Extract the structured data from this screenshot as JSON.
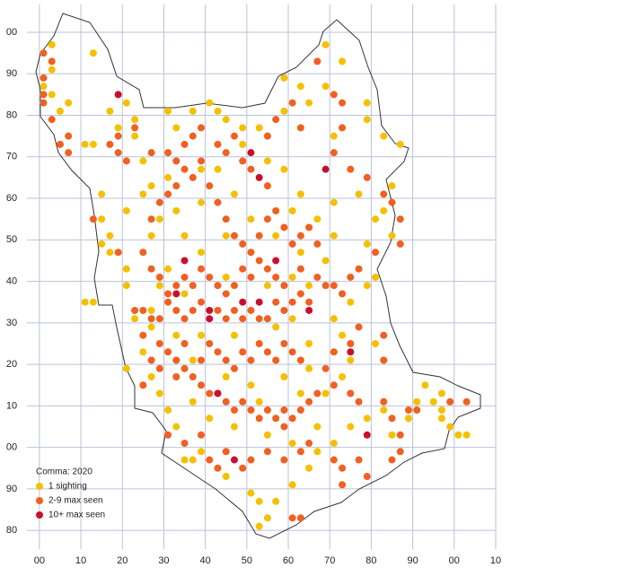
{
  "chart_data": {
    "type": "scatter",
    "title": "Comma:  2020",
    "xlim": [
      -3,
      110
    ],
    "ylim": [
      75.5,
      206.7
    ],
    "xticks": [
      {
        "value": 0,
        "label": "00"
      },
      10,
      20,
      30,
      40,
      50,
      60,
      70,
      80,
      90,
      {
        "value": 100,
        "label": "00"
      },
      {
        "value": 110,
        "label": "10"
      }
    ],
    "yticks": [
      80,
      90,
      {
        "value": 100,
        "label": "00"
      },
      {
        "value": 110,
        "label": "10"
      },
      {
        "value": 120,
        "label": "20"
      },
      {
        "value": 130,
        "label": "30"
      },
      {
        "value": 140,
        "label": "40"
      },
      {
        "value": 150,
        "label": "50"
      },
      {
        "value": 160,
        "label": "60"
      },
      {
        "value": 170,
        "label": "70"
      },
      {
        "value": 180,
        "label": "80"
      },
      {
        "value": 190,
        "label": "90"
      },
      {
        "value": 200,
        "label": "00"
      }
    ],
    "grid": true,
    "series": [
      {
        "name": "1 sighting",
        "color": "#f5c000",
        "x": [
          1,
          3,
          3,
          3,
          5,
          7,
          13,
          21,
          17,
          13,
          11,
          19,
          23,
          23,
          25,
          31,
          33,
          37,
          41,
          43,
          45,
          49,
          53,
          59,
          59,
          63,
          65,
          73,
          69,
          69,
          71,
          79,
          79,
          83,
          87,
          85,
          83,
          81,
          85,
          77,
          71,
          63,
          59,
          55,
          49,
          43,
          39,
          31,
          27,
          25,
          29,
          21,
          15,
          15,
          17,
          15,
          17,
          11,
          13,
          21,
          21,
          23,
          27,
          25,
          21,
          27,
          29,
          31,
          33,
          35,
          37,
          39,
          45,
          51,
          53,
          57,
          55,
          53,
          61,
          65,
          67,
          71,
          75,
          79,
          83,
          85,
          89,
          91,
          95,
          97,
          99,
          101,
          103,
          97,
          93,
          97,
          73,
          75,
          81,
          73,
          71,
          75,
          79,
          81,
          79,
          71,
          69,
          63,
          61,
          55,
          45,
          39,
          35,
          31,
          29,
          27,
          33,
          37,
          39,
          45,
          51,
          53,
          59,
          63,
          65,
          69,
          67,
          61,
          55,
          47,
          41,
          37,
          47,
          57,
          61,
          65,
          45,
          51,
          57,
          61,
          67,
          65,
          47,
          39,
          33,
          27,
          35
        ],
        "y": [
          187,
          191,
          197,
          185,
          181,
          183,
          195,
          183,
          181,
          173,
          173,
          177,
          179,
          175,
          169,
          181,
          177,
          181,
          183,
          181,
          179,
          177,
          177,
          181,
          189,
          187,
          183,
          193,
          197,
          187,
          175,
          183,
          179,
          175,
          173,
          163,
          157,
          155,
          151,
          161,
          159,
          161,
          167,
          169,
          173,
          167,
          167,
          165,
          163,
          161,
          155,
          157,
          161,
          155,
          151,
          149,
          147,
          135,
          135,
          143,
          139,
          131,
          129,
          123,
          119,
          117,
          113,
          109,
          105,
          97,
          97,
          99,
          93,
          89,
          87,
          87,
          83,
          81,
          91,
          95,
          99,
          101,
          105,
          107,
          109,
          103,
          107,
          111,
          111,
          109,
          105,
          103,
          103,
          113,
          115,
          107,
          117,
          121,
          125,
          127,
          131,
          135,
          139,
          141,
          149,
          151,
          145,
          147,
          141,
          139,
          141,
          147,
          151,
          143,
          139,
          133,
          127,
          121,
          127,
          117,
          115,
          111,
          117,
          113,
          119,
          113,
          105,
          101,
          103,
          105,
          107,
          111,
          127,
          129,
          131,
          125,
          151,
          155,
          151,
          157,
          155,
          139,
          161,
          159,
          157,
          151,
          137
        ]
      },
      {
        "name": "2-9 max seen",
        "color": "#f06020",
        "x": [
          1,
          1,
          1,
          1,
          3,
          3,
          5,
          7,
          7,
          17,
          19,
          21,
          23,
          19,
          13,
          19,
          27,
          31,
          33,
          35,
          37,
          39,
          43,
          45,
          47,
          49,
          51,
          55,
          55,
          57,
          61,
          63,
          67,
          71,
          73,
          73,
          71,
          75,
          79,
          83,
          85,
          87,
          87,
          81,
          77,
          75,
          73,
          71,
          67,
          63,
          59,
          57,
          55,
          53,
          51,
          49,
          47,
          45,
          43,
          41,
          39,
          37,
          35,
          33,
          31,
          29,
          27,
          25,
          27,
          29,
          31,
          33,
          35,
          37,
          39,
          41,
          43,
          45,
          47,
          49,
          51,
          53,
          55,
          57,
          59,
          61,
          63,
          65,
          67,
          69,
          65,
          63,
          61,
          59,
          57,
          55,
          53,
          51,
          49,
          47,
          45,
          43,
          39,
          37,
          35,
          33,
          31,
          29,
          27,
          25,
          23,
          25,
          29,
          31,
          33,
          35,
          37,
          39,
          41,
          45,
          47,
          49,
          51,
          53,
          55,
          57,
          59,
          61,
          63,
          65,
          67,
          63,
          61,
          59,
          57,
          55,
          53,
          51,
          49,
          47,
          45,
          43,
          41,
          39,
          35,
          33,
          29,
          27,
          25,
          31,
          35,
          39,
          41,
          43,
          45,
          49,
          51,
          55,
          59,
          63,
          65,
          71,
          73,
          73,
          77,
          79,
          85,
          87,
          87,
          85,
          89,
          91,
          99,
          103,
          83,
          77,
          75,
          71,
          69,
          71,
          75,
          77,
          83,
          83,
          61,
          63,
          59
        ],
        "y": [
          185,
          183,
          189,
          195,
          193,
          179,
          173,
          171,
          175,
          173,
          175,
          169,
          177,
          171,
          155,
          147,
          171,
          171,
          169,
          173,
          175,
          177,
          173,
          171,
          175,
          169,
          167,
          163,
          175,
          179,
          183,
          177,
          193,
          185,
          183,
          177,
          171,
          167,
          165,
          161,
          159,
          155,
          149,
          147,
          143,
          141,
          137,
          139,
          141,
          143,
          139,
          141,
          143,
          145,
          141,
          143,
          139,
          137,
          139,
          141,
          143,
          139,
          141,
          139,
          137,
          141,
          143,
          147,
          155,
          159,
          161,
          163,
          167,
          165,
          169,
          163,
          159,
          155,
          151,
          149,
          147,
          151,
          155,
          157,
          153,
          149,
          151,
          153,
          149,
          139,
          135,
          137,
          135,
          133,
          135,
          131,
          131,
          133,
          131,
          133,
          131,
          133,
          135,
          133,
          131,
          133,
          135,
          131,
          131,
          133,
          133,
          127,
          125,
          123,
          121,
          119,
          117,
          115,
          113,
          111,
          109,
          111,
          109,
          107,
          109,
          107,
          105,
          107,
          109,
          111,
          113,
          121,
          123,
          125,
          121,
          123,
          125,
          121,
          123,
          119,
          121,
          123,
          125,
          121,
          125,
          117,
          119,
          121,
          115,
          103,
          101,
          103,
          97,
          95,
          99,
          95,
          97,
          99,
          97,
          99,
          101,
          97,
          95,
          91,
          97,
          93,
          97,
          99,
          103,
          107,
          109,
          109,
          111,
          111,
          111,
          111,
          113,
          115,
          119,
          123,
          125,
          129,
          127,
          121,
          83,
          83,
          109
        ]
      },
      {
        "name": "10+ max seen",
        "color": "#c8102e",
        "x": [
          19,
          51,
          69,
          53,
          35,
          57,
          33,
          41,
          49,
          53,
          65,
          41,
          75,
          43,
          47,
          79
        ],
        "y": [
          185,
          171,
          167,
          165,
          145,
          145,
          137,
          133,
          135,
          135,
          133,
          131,
          123,
          113,
          97,
          103
        ]
      }
    ]
  }
}
